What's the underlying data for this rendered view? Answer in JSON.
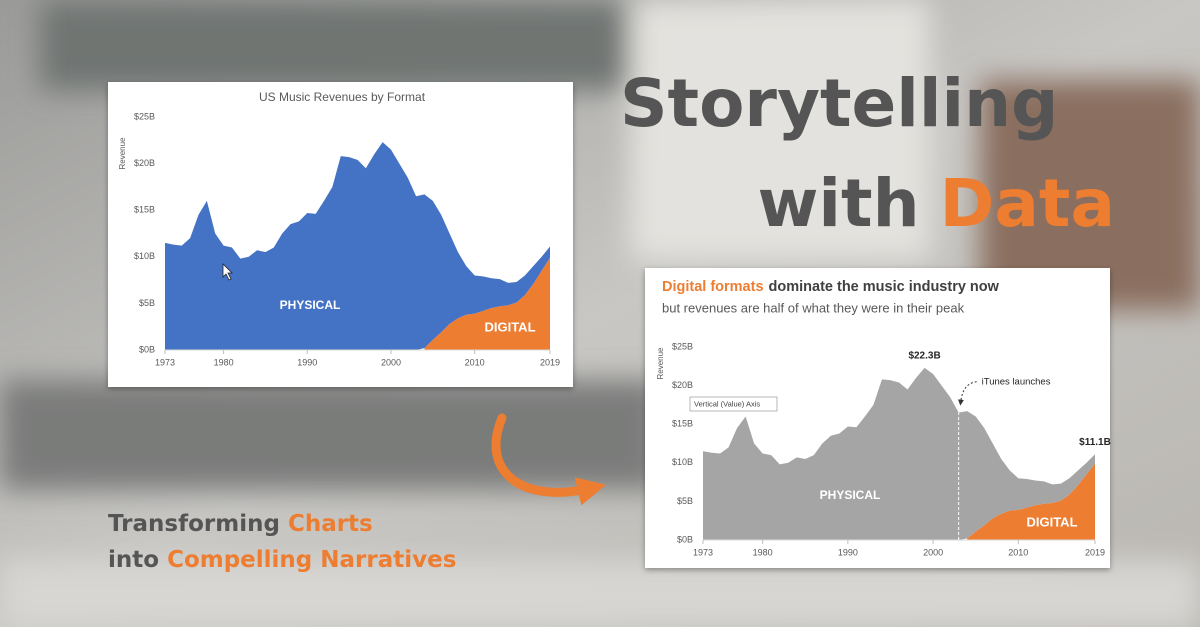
{
  "headline": {
    "line1": "Storytelling",
    "line2a": "with",
    "line2b": "Data"
  },
  "tagline": {
    "line1a": "Transforming",
    "line1b": "Charts",
    "line2a": "into",
    "line2b": "Compelling Narratives"
  },
  "chart_data": [
    {
      "type": "stacked-area",
      "title": "US Music Revenues by Format",
      "y_label": "Revenue",
      "x": [
        1973,
        1974,
        1975,
        1976,
        1977,
        1978,
        1979,
        1980,
        1981,
        1982,
        1983,
        1984,
        1985,
        1986,
        1987,
        1988,
        1989,
        1990,
        1991,
        1992,
        1993,
        1994,
        1995,
        1996,
        1997,
        1998,
        1999,
        2000,
        2001,
        2002,
        2003,
        2004,
        2005,
        2006,
        2007,
        2008,
        2009,
        2010,
        2011,
        2012,
        2013,
        2014,
        2015,
        2016,
        2017,
        2018,
        2019
      ],
      "series": [
        {
          "name": "PHYSICAL",
          "color": "#4472c4",
          "values": [
            11.5,
            11.3,
            11.2,
            12,
            14.5,
            16,
            12.5,
            11.2,
            11,
            9.8,
            10,
            10.7,
            10.5,
            11,
            12.5,
            13.5,
            13.8,
            14.7,
            14.6,
            16,
            17.5,
            20.8,
            20.7,
            20.4,
            19.5,
            21,
            22.3,
            21.5,
            20,
            18.5,
            16.5,
            16.5,
            14.9,
            12.6,
            9.7,
            7.1,
            5.2,
            4.1,
            3.7,
            3.2,
            2.9,
            2.4,
            2.2,
            2.1,
            1.9,
            1.5,
            1.2
          ]
        },
        {
          "name": "DIGITAL",
          "color": "#ed7d31",
          "values": [
            null,
            null,
            null,
            null,
            null,
            null,
            null,
            null,
            null,
            null,
            null,
            null,
            null,
            null,
            null,
            null,
            null,
            null,
            null,
            null,
            null,
            null,
            null,
            null,
            null,
            null,
            null,
            null,
            null,
            null,
            null,
            0.2,
            1.1,
            1.9,
            2.8,
            3.4,
            3.8,
            3.9,
            4.2,
            4.5,
            4.7,
            4.8,
            5.1,
            5.9,
            7.1,
            8.5,
            9.9
          ]
        }
      ],
      "xlim": [
        1973,
        2019
      ],
      "xticks": [
        1973,
        1980,
        1990,
        2000,
        2010,
        2019
      ],
      "ylim": [
        0,
        25
      ],
      "yticks": [
        {
          "value": 0,
          "label": "$0B"
        },
        {
          "value": 5,
          "label": "$5B"
        },
        {
          "value": 10,
          "label": "$10B"
        },
        {
          "value": 15,
          "label": "$15B"
        },
        {
          "value": 20,
          "label": "$20B"
        },
        {
          "value": 25,
          "label": "$25B"
        }
      ]
    },
    {
      "type": "stacked-area",
      "title_highlight": "Digital formats",
      "title_rest": "dominate the music industry now",
      "subtitle": "but revenues are half of what they were in their peak",
      "y_label": "Revenue",
      "x": [
        1973,
        1974,
        1975,
        1976,
        1977,
        1978,
        1979,
        1980,
        1981,
        1982,
        1983,
        1984,
        1985,
        1986,
        1987,
        1988,
        1989,
        1990,
        1991,
        1992,
        1993,
        1994,
        1995,
        1996,
        1997,
        1998,
        1999,
        2000,
        2001,
        2002,
        2003,
        2004,
        2005,
        2006,
        2007,
        2008,
        2009,
        2010,
        2011,
        2012,
        2013,
        2014,
        2015,
        2016,
        2017,
        2018,
        2019
      ],
      "series": [
        {
          "name": "PHYSICAL",
          "color": "#a5a5a5",
          "values": [
            11.5,
            11.3,
            11.2,
            12,
            14.5,
            16,
            12.5,
            11.2,
            11,
            9.8,
            10,
            10.7,
            10.5,
            11,
            12.5,
            13.5,
            13.8,
            14.7,
            14.6,
            16,
            17.5,
            20.8,
            20.7,
            20.4,
            19.5,
            21,
            22.3,
            21.5,
            20,
            18.5,
            16.5,
            16.5,
            14.9,
            12.6,
            9.7,
            7.1,
            5.2,
            4.1,
            3.7,
            3.2,
            2.9,
            2.4,
            2.2,
            2.1,
            1.9,
            1.5,
            1.2
          ]
        },
        {
          "name": "DIGITAL",
          "color": "#ed7d31",
          "values": [
            null,
            null,
            null,
            null,
            null,
            null,
            null,
            null,
            null,
            null,
            null,
            null,
            null,
            null,
            null,
            null,
            null,
            null,
            null,
            null,
            null,
            null,
            null,
            null,
            null,
            null,
            null,
            null,
            null,
            null,
            null,
            0.2,
            1.1,
            1.9,
            2.8,
            3.4,
            3.8,
            3.9,
            4.2,
            4.5,
            4.7,
            4.8,
            5.1,
            5.9,
            7.1,
            8.5,
            9.9
          ]
        }
      ],
      "xlim": [
        1973,
        2019
      ],
      "xticks": [
        1973,
        1980,
        1990,
        2000,
        2010,
        2019
      ],
      "ylim": [
        0,
        25
      ],
      "yticks": [
        {
          "value": 0,
          "label": "$0B"
        },
        {
          "value": 5,
          "label": "$5B"
        },
        {
          "value": 10,
          "label": "$10B"
        },
        {
          "value": 15,
          "label": "$15B"
        },
        {
          "value": 20,
          "label": "$20B"
        },
        {
          "value": 25,
          "label": "$25B"
        }
      ],
      "annotations": [
        {
          "label": "$22.3B",
          "x": 1999,
          "value": 22.3
        },
        {
          "label": "$11.1B",
          "x": 2019,
          "value": 11.1
        },
        {
          "label": "iTunes launches",
          "x": 2003
        }
      ],
      "tooltip": "Vertical (Value) Axis"
    }
  ]
}
